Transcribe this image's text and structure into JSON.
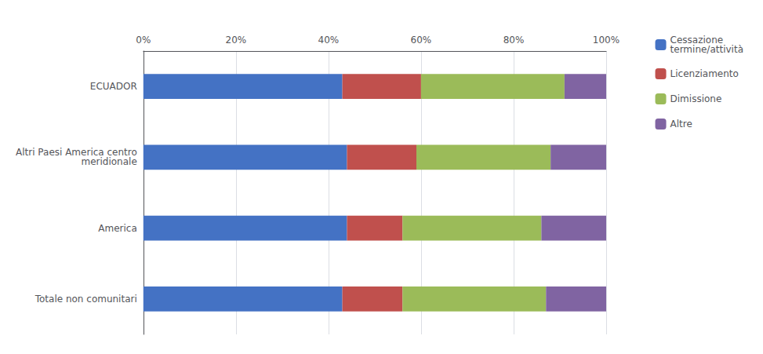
{
  "chart_data": {
    "type": "bar",
    "orientation": "horizontal",
    "stacked": true,
    "categories": [
      "Totale non comunitari",
      "America",
      "Altri Paesi America centro\nmeridionale",
      "ECUADOR"
    ],
    "series": [
      {
        "name": "Cessazione\ntermine/attività",
        "color": "#4472C4",
        "values": [
          43.0,
          44.0,
          44.0,
          43.0
        ]
      },
      {
        "name": "Licenziamento",
        "color": "#C0504D",
        "values": [
          13.0,
          12.0,
          15.0,
          17.0
        ]
      },
      {
        "name": "Dimissione",
        "color": "#9BBB59",
        "values": [
          31.0,
          30.0,
          29.0,
          31.0
        ]
      },
      {
        "name": "Altre",
        "color": "#8064A2",
        "values": [
          13.0,
          14.0,
          12.0,
          9.0
        ]
      }
    ],
    "xlim": [
      0,
      100
    ],
    "xticks": [
      {
        "value": 0,
        "label": "0%"
      },
      {
        "value": 20,
        "label": "20%"
      },
      {
        "value": 40,
        "label": "40%"
      },
      {
        "value": 60,
        "label": "60%"
      },
      {
        "value": 80,
        "label": "80%"
      },
      {
        "value": 100,
        "label": "100%"
      }
    ],
    "grid": true,
    "legend": "right"
  }
}
